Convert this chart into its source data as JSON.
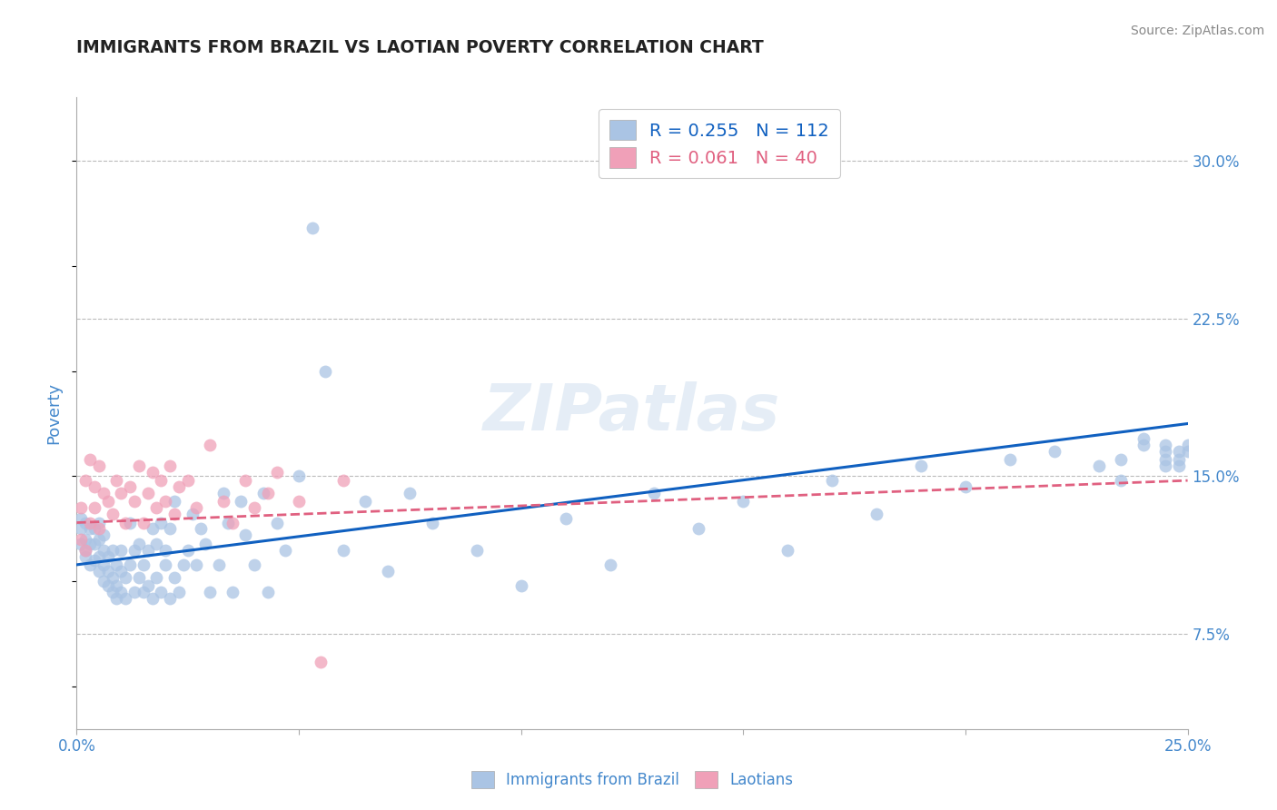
{
  "title": "IMMIGRANTS FROM BRAZIL VS LAOTIAN POVERTY CORRELATION CHART",
  "source_text": "Source: ZipAtlas.com",
  "xlabel_brazil": "Immigrants from Brazil",
  "xlabel_laotians": "Laotians",
  "ylabel": "Poverty",
  "xlim": [
    0.0,
    0.25
  ],
  "ylim": [
    0.03,
    0.33
  ],
  "xticks": [
    0.0,
    0.05,
    0.1,
    0.15,
    0.2,
    0.25
  ],
  "yticks_right": [
    0.075,
    0.15,
    0.225,
    0.3
  ],
  "ytick_labels_right": [
    "7.5%",
    "15.0%",
    "22.5%",
    "30.0%"
  ],
  "xtick_labels": [
    "0.0%",
    "",
    "",
    "",
    "",
    "25.0%"
  ],
  "r_brazil": 0.255,
  "n_brazil": 112,
  "r_laotian": 0.061,
  "n_laotian": 40,
  "color_brazil": "#aac4e4",
  "color_laotian": "#f0a0b8",
  "line_brazil": "#1060c0",
  "line_laotian": "#e06080",
  "brazil_trend_x0": 0.0,
  "brazil_trend_y0": 0.108,
  "brazil_trend_x1": 0.25,
  "brazil_trend_y1": 0.175,
  "laotian_trend_x0": 0.0,
  "laotian_trend_y0": 0.128,
  "laotian_trend_x1": 0.25,
  "laotian_trend_y1": 0.148,
  "watermark_text": "ZIPatlas",
  "brazil_x": [
    0.001,
    0.001,
    0.001,
    0.002,
    0.002,
    0.002,
    0.002,
    0.003,
    0.003,
    0.003,
    0.004,
    0.004,
    0.004,
    0.005,
    0.005,
    0.005,
    0.005,
    0.006,
    0.006,
    0.006,
    0.006,
    0.007,
    0.007,
    0.007,
    0.008,
    0.008,
    0.008,
    0.009,
    0.009,
    0.009,
    0.01,
    0.01,
    0.01,
    0.011,
    0.011,
    0.012,
    0.012,
    0.013,
    0.013,
    0.014,
    0.014,
    0.015,
    0.015,
    0.016,
    0.016,
    0.017,
    0.017,
    0.018,
    0.018,
    0.019,
    0.019,
    0.02,
    0.02,
    0.021,
    0.021,
    0.022,
    0.022,
    0.023,
    0.024,
    0.025,
    0.026,
    0.027,
    0.028,
    0.029,
    0.03,
    0.032,
    0.033,
    0.034,
    0.035,
    0.037,
    0.038,
    0.04,
    0.042,
    0.043,
    0.045,
    0.047,
    0.05,
    0.053,
    0.056,
    0.06,
    0.065,
    0.07,
    0.075,
    0.08,
    0.09,
    0.1,
    0.11,
    0.12,
    0.13,
    0.14,
    0.15,
    0.16,
    0.17,
    0.18,
    0.19,
    0.2,
    0.21,
    0.22,
    0.23,
    0.235,
    0.24,
    0.245,
    0.248,
    0.25,
    0.24,
    0.245,
    0.248,
    0.25,
    0.235,
    0.245,
    0.245,
    0.248
  ],
  "brazil_y": [
    0.125,
    0.118,
    0.13,
    0.112,
    0.12,
    0.128,
    0.115,
    0.108,
    0.118,
    0.125,
    0.11,
    0.118,
    0.125,
    0.105,
    0.112,
    0.12,
    0.128,
    0.1,
    0.108,
    0.115,
    0.122,
    0.098,
    0.105,
    0.112,
    0.095,
    0.102,
    0.115,
    0.092,
    0.098,
    0.108,
    0.095,
    0.105,
    0.115,
    0.092,
    0.102,
    0.128,
    0.108,
    0.095,
    0.115,
    0.102,
    0.118,
    0.095,
    0.108,
    0.098,
    0.115,
    0.092,
    0.125,
    0.102,
    0.118,
    0.095,
    0.128,
    0.108,
    0.115,
    0.092,
    0.125,
    0.102,
    0.138,
    0.095,
    0.108,
    0.115,
    0.132,
    0.108,
    0.125,
    0.118,
    0.095,
    0.108,
    0.142,
    0.128,
    0.095,
    0.138,
    0.122,
    0.108,
    0.142,
    0.095,
    0.128,
    0.115,
    0.15,
    0.268,
    0.2,
    0.115,
    0.138,
    0.105,
    0.142,
    0.128,
    0.115,
    0.098,
    0.13,
    0.108,
    0.142,
    0.125,
    0.138,
    0.115,
    0.148,
    0.132,
    0.155,
    0.145,
    0.158,
    0.162,
    0.155,
    0.148,
    0.165,
    0.158,
    0.155,
    0.162,
    0.168,
    0.155,
    0.162,
    0.165,
    0.158,
    0.162,
    0.165,
    0.158
  ],
  "laotian_x": [
    0.001,
    0.001,
    0.002,
    0.002,
    0.003,
    0.003,
    0.004,
    0.004,
    0.005,
    0.005,
    0.006,
    0.007,
    0.008,
    0.009,
    0.01,
    0.011,
    0.012,
    0.013,
    0.014,
    0.015,
    0.016,
    0.017,
    0.018,
    0.019,
    0.02,
    0.021,
    0.022,
    0.023,
    0.025,
    0.027,
    0.03,
    0.033,
    0.035,
    0.038,
    0.04,
    0.043,
    0.045,
    0.05,
    0.055,
    0.06
  ],
  "laotian_y": [
    0.12,
    0.135,
    0.115,
    0.148,
    0.128,
    0.158,
    0.135,
    0.145,
    0.155,
    0.125,
    0.142,
    0.138,
    0.132,
    0.148,
    0.142,
    0.128,
    0.145,
    0.138,
    0.155,
    0.128,
    0.142,
    0.152,
    0.135,
    0.148,
    0.138,
    0.155,
    0.132,
    0.145,
    0.148,
    0.135,
    0.165,
    0.138,
    0.128,
    0.148,
    0.135,
    0.142,
    0.152,
    0.138,
    0.062,
    0.148
  ]
}
